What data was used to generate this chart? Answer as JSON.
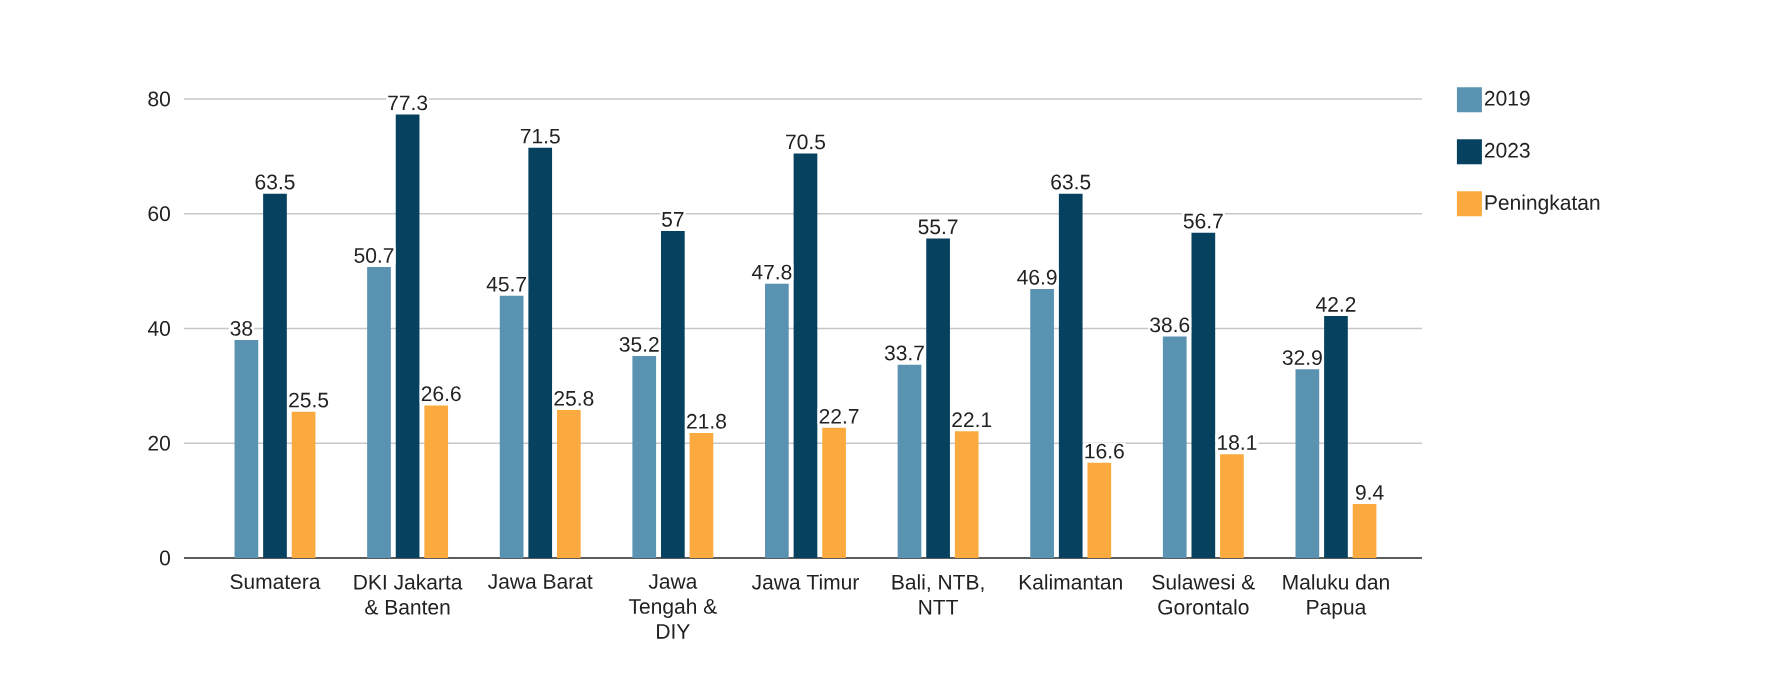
{
  "chart_data": {
    "type": "bar",
    "categories": [
      "Sumatera",
      "DKI Jakarta & Banten",
      "Jawa Barat",
      "Jawa Tengah & DIY",
      "Jawa Timur",
      "Bali, NTB, NTT",
      "Kalimantan",
      "Sulawesi & Gorontalo",
      "Maluku dan Papua"
    ],
    "series": [
      {
        "name": "2019",
        "color": "#5a92b1",
        "values": [
          38,
          50.7,
          45.7,
          35.2,
          47.8,
          33.7,
          46.9,
          38.6,
          32.9
        ]
      },
      {
        "name": "2023",
        "color": "#06415f",
        "values": [
          63.5,
          77.3,
          71.5,
          57,
          70.5,
          55.7,
          63.5,
          56.7,
          42.2
        ]
      },
      {
        "name": "Peningkatan",
        "color": "#fbaa3f",
        "values": [
          25.5,
          26.6,
          25.8,
          21.8,
          22.7,
          22.1,
          16.6,
          18.1,
          9.4
        ]
      }
    ],
    "ylim": [
      0,
      80
    ],
    "yticks": [
      0,
      20,
      40,
      60,
      80
    ],
    "grid": "y",
    "legend": "right",
    "data_labels": true
  }
}
